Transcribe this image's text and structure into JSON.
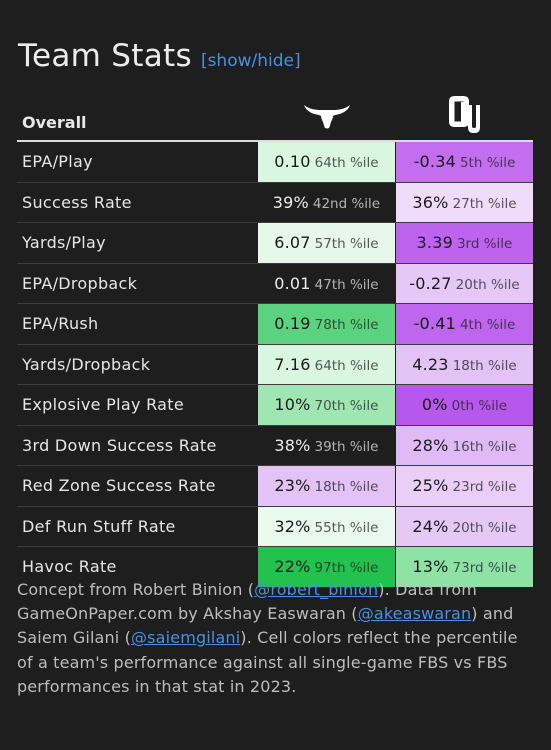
{
  "header": {
    "title": "Team Stats",
    "toggle_label": "[show/hide]"
  },
  "table": {
    "header_label": "Overall",
    "teams": [
      {
        "icon": "longhorn-logo-icon",
        "color": "#ffffff"
      },
      {
        "icon": "ou-logo-icon",
        "color": "#ffffff"
      }
    ],
    "rows": [
      {
        "stat": "EPA/Play",
        "a": {
          "value": "0.10",
          "pct": "64th %ile",
          "bg": "#d9f6e1",
          "fg": "#1a1a1a"
        },
        "b": {
          "value": "-0.34",
          "pct": "5th %ile",
          "bg": "#c36ef0",
          "fg": "#1a1a1a"
        }
      },
      {
        "stat": "Success Rate",
        "a": {
          "value": "39%",
          "pct": "42nd %ile",
          "bg": "transparent",
          "fg": "#ececec"
        },
        "b": {
          "value": "36%",
          "pct": "27th %ile",
          "bg": "#efdcfa",
          "fg": "#1a1a1a"
        }
      },
      {
        "stat": "Yards/Play",
        "a": {
          "value": "6.07",
          "pct": "57th %ile",
          "bg": "#e6f8ea",
          "fg": "#1a1a1a"
        },
        "b": {
          "value": "3.39",
          "pct": "3rd %ile",
          "bg": "#bd63ee",
          "fg": "#1a1a1a"
        }
      },
      {
        "stat": "EPA/Dropback",
        "a": {
          "value": "0.01",
          "pct": "47th %ile",
          "bg": "transparent",
          "fg": "#ececec"
        },
        "b": {
          "value": "-0.27",
          "pct": "20th %ile",
          "bg": "#e6c8f7",
          "fg": "#1a1a1a"
        }
      },
      {
        "stat": "EPA/Rush",
        "a": {
          "value": "0.19",
          "pct": "78th %ile",
          "bg": "#5bd37e",
          "fg": "#1a1a1a"
        },
        "b": {
          "value": "-0.41",
          "pct": "4th %ile",
          "bg": "#bf66ef",
          "fg": "#1a1a1a"
        }
      },
      {
        "stat": "Yards/Dropback",
        "a": {
          "value": "7.16",
          "pct": "64th %ile",
          "bg": "#d9f6e1",
          "fg": "#1a1a1a"
        },
        "b": {
          "value": "4.23",
          "pct": "18th %ile",
          "bg": "#e3c2f6",
          "fg": "#1a1a1a"
        }
      },
      {
        "stat": "Explosive Play Rate",
        "a": {
          "value": "10%",
          "pct": "70th %ile",
          "bg": "#9fe6b3",
          "fg": "#1a1a1a"
        },
        "b": {
          "value": "0%",
          "pct": "0th %ile",
          "bg": "#b658ec",
          "fg": "#1a1a1a"
        }
      },
      {
        "stat": "3rd Down Success Rate",
        "a": {
          "value": "38%",
          "pct": "39th %ile",
          "bg": "transparent",
          "fg": "#ececec"
        },
        "b": {
          "value": "28%",
          "pct": "16th %ile",
          "bg": "#dfbaf5",
          "fg": "#1a1a1a"
        }
      },
      {
        "stat": "Red Zone Success Rate",
        "a": {
          "value": "23%",
          "pct": "18th %ile",
          "bg": "#e3c2f6",
          "fg": "#1a1a1a"
        },
        "b": {
          "value": "25%",
          "pct": "23rd %ile",
          "bg": "#e9cff8",
          "fg": "#1a1a1a"
        }
      },
      {
        "stat": "Def Run Stuff Rate",
        "a": {
          "value": "32%",
          "pct": "55th %ile",
          "bg": "#eaf9ee",
          "fg": "#1a1a1a"
        },
        "b": {
          "value": "24%",
          "pct": "20th %ile",
          "bg": "#e6c8f7",
          "fg": "#1a1a1a"
        }
      },
      {
        "stat": "Havoc Rate",
        "a": {
          "value": "22%",
          "pct": "97th %ile",
          "bg": "#23c24e",
          "fg": "#1a1a1a"
        },
        "b": {
          "value": "13%",
          "pct": "73rd %ile",
          "bg": "#8fe2a6",
          "fg": "#1a1a1a"
        }
      }
    ]
  },
  "footnote": {
    "p1": "Concept from Robert Binion (",
    "link1": "@robert_binion",
    "p2": "). Data from GameOnPaper.com by Akshay Easwaran (",
    "link2": "@akeaswaran",
    "p3": ") and Saiem Gilani (",
    "link3": "@saiemgilani",
    "p4": "). Cell colors reflect the percentile of a team's performance against all single-game FBS vs FBS performances in that stat in 2023."
  }
}
